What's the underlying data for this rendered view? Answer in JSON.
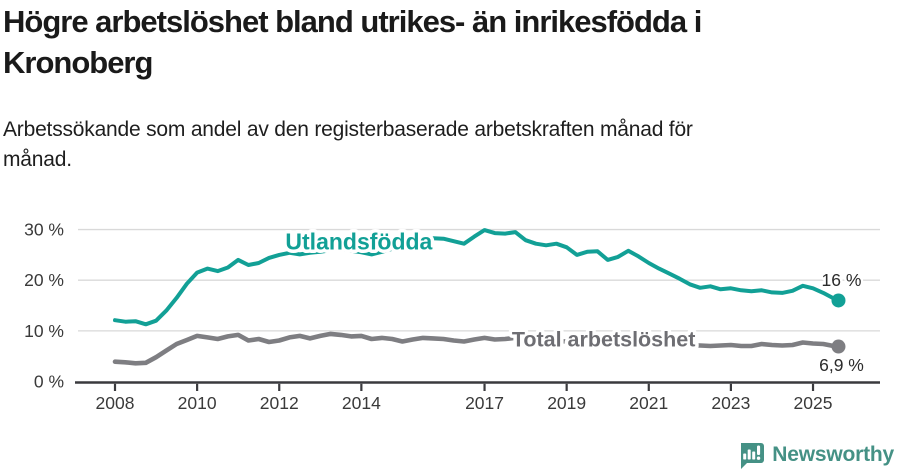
{
  "header": {
    "title": "Högre arbetslöshet bland utrikes- än inrikesfödda i Kronoberg",
    "subtitle": "Arbetssökande som andel av den registerbaserade arbetskraften månad för månad."
  },
  "footer": {
    "brand": "Newsworthy",
    "logo_icon": "bar-chart-speech-bubble-icon"
  },
  "colors": {
    "teal_line": "#12a096",
    "gray_line": "#7e7e82",
    "gray_label": "#6e6e73",
    "grid": "#d9d9d9",
    "axis": "#3a3a3e",
    "tick_text": "#3a3a3a",
    "end_label_text": "#2b2b2b",
    "title_text": "#1a1a1a",
    "brand_teal": "#459185"
  },
  "chart_data": {
    "type": "line",
    "x_unit": "year (monthly series, sampled quarterly)",
    "x_start": 2008.0,
    "x_step": 0.25,
    "ylim": [
      0,
      32
    ],
    "xlim": [
      2007.9,
      2026.3
    ],
    "grid": "horizontal-only",
    "y_gridlines": [
      10,
      20,
      30
    ],
    "y_ticks": [
      {
        "value": 0,
        "label": "0 %"
      },
      {
        "value": 10,
        "label": "10 %"
      },
      {
        "value": 20,
        "label": "20 %"
      },
      {
        "value": 30,
        "label": "30 %"
      }
    ],
    "x_ticks": [
      {
        "value": 2008,
        "label": "2008"
      },
      {
        "value": 2010,
        "label": "2010"
      },
      {
        "value": 2012,
        "label": "2012"
      },
      {
        "value": 2014,
        "label": "2014"
      },
      {
        "value": 2017,
        "label": "2017"
      },
      {
        "value": 2019,
        "label": "2019"
      },
      {
        "value": 2021,
        "label": "2021"
      },
      {
        "value": 2023,
        "label": "2023"
      },
      {
        "value": 2025,
        "label": "2025"
      }
    ],
    "legend_position": "inline-labels-on-lines",
    "series": [
      {
        "id": "utlandsfodda",
        "name": "Utlandsfödda",
        "color": "#12a096",
        "label_color": "#12a096",
        "label_anchor": {
          "x": 2013.94,
          "y": 27.5
        },
        "values": [
          12.1,
          11.8,
          11.9,
          11.3,
          12.0,
          14.0,
          16.5,
          19.3,
          21.5,
          22.3,
          21.8,
          22.5,
          24.0,
          23.0,
          23.4,
          24.4,
          25.0,
          25.4,
          25.1,
          25.4,
          25.6,
          25.9,
          26.1,
          25.8,
          25.5,
          25.1,
          25.6,
          26.2,
          26.7,
          27.1,
          27.5,
          28.3,
          28.2,
          27.7,
          27.2,
          28.6,
          29.9,
          29.3,
          29.2,
          29.5,
          27.9,
          27.2,
          26.9,
          27.2,
          26.5,
          25.0,
          25.6,
          25.7,
          24.0,
          24.6,
          25.8,
          24.7,
          23.4,
          22.3,
          21.3,
          20.3,
          19.2,
          18.5,
          18.8,
          18.2,
          18.4,
          18.0,
          17.8,
          18.0,
          17.6,
          17.5,
          17.9,
          18.9,
          18.4,
          17.5,
          16.4
        ],
        "end": {
          "x": 2025.62,
          "value": 16.0,
          "label": "16 %",
          "label_side": "above"
        }
      },
      {
        "id": "total",
        "name": "Total arbetslöshet",
        "color": "#7e7e82",
        "label_color": "#6e6e73",
        "label_anchor": {
          "x": 2019.9,
          "y": 8.4
        },
        "values": [
          3.9,
          3.8,
          3.6,
          3.7,
          4.8,
          6.1,
          7.4,
          8.2,
          9.0,
          8.7,
          8.4,
          8.9,
          9.2,
          8.1,
          8.4,
          7.8,
          8.1,
          8.7,
          9.0,
          8.5,
          9.0,
          9.4,
          9.2,
          8.9,
          9.0,
          8.4,
          8.6,
          8.4,
          7.9,
          8.3,
          8.6,
          8.5,
          8.4,
          8.1,
          7.9,
          8.3,
          8.6,
          8.3,
          8.4,
          8.6,
          8.3,
          8.1,
          8.3,
          8.0,
          7.9,
          7.7,
          7.8,
          7.6,
          7.6,
          8.2,
          8.6,
          8.3,
          8.0,
          7.7,
          7.4,
          7.2,
          7.1,
          7.1,
          7.0,
          7.1,
          7.2,
          7.0,
          7.0,
          7.4,
          7.2,
          7.1,
          7.2,
          7.7,
          7.5,
          7.4,
          7.0
        ],
        "end": {
          "x": 2025.62,
          "value": 6.9,
          "label": "6,9 %",
          "label_side": "below"
        }
      }
    ]
  }
}
